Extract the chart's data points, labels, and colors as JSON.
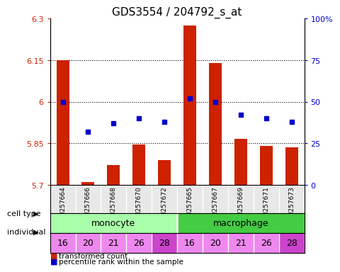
{
  "title": "GDS3554 / 204792_s_at",
  "samples": [
    "GSM257664",
    "GSM257666",
    "GSM257668",
    "GSM257670",
    "GSM257672",
    "GSM257665",
    "GSM257667",
    "GSM257669",
    "GSM257671",
    "GSM257673"
  ],
  "transformed_count": [
    6.15,
    5.71,
    5.77,
    5.845,
    5.79,
    6.275,
    6.14,
    5.865,
    5.84,
    5.835
  ],
  "percentile_rank": [
    50,
    32,
    37,
    40,
    38,
    52,
    50,
    42,
    40,
    38
  ],
  "ylim": [
    5.7,
    6.3
  ],
  "yticks": [
    5.7,
    5.85,
    6.0,
    6.15,
    6.3
  ],
  "ytick_labels": [
    "5.7",
    "5.85",
    "6",
    "6.15",
    "6.3"
  ],
  "right_yticks": [
    0,
    25,
    50,
    75,
    100
  ],
  "right_ytick_labels": [
    "0",
    "25",
    "50",
    "75",
    "100%"
  ],
  "individuals": [
    16,
    20,
    21,
    26,
    28,
    16,
    20,
    21,
    26,
    28
  ],
  "bar_color": "#cc2200",
  "dot_color": "#0000cc",
  "monocyte_color": "#aaffaa",
  "macrophage_color": "#44cc44",
  "ind_colors": [
    "#ee88ee",
    "#ee88ee",
    "#ee88ee",
    "#ee88ee",
    "#cc44cc",
    "#ee88ee",
    "#ee88ee",
    "#ee88ee",
    "#ee88ee",
    "#cc44cc"
  ],
  "bg_color": "#e8e8e8",
  "legend_red": "transformed count",
  "legend_blue": "percentile rank within the sample"
}
